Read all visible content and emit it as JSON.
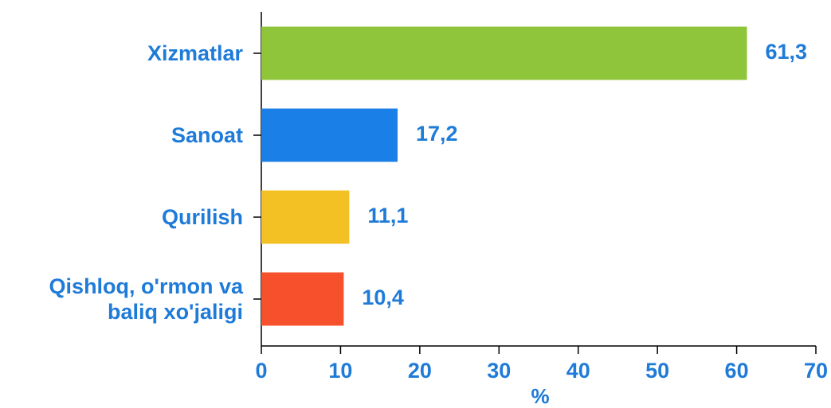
{
  "chart_data": {
    "type": "barh",
    "categories": [
      "Xizmatlar",
      "Sanoat",
      "Qurilish",
      "Qishloq, o'rmon va baliq xo'jaligi"
    ],
    "values": [
      61.3,
      17.2,
      11.1,
      10.4
    ],
    "value_labels": [
      "61,3",
      "17,2",
      "11,1",
      "10,4"
    ],
    "colors": [
      "#8fc53a",
      "#1a7fe6",
      "#f4c124",
      "#f7502c"
    ],
    "xlabel": "%",
    "xlim": [
      0,
      70
    ],
    "xticks": [
      0,
      10,
      20,
      30,
      40,
      50,
      60,
      70
    ]
  }
}
